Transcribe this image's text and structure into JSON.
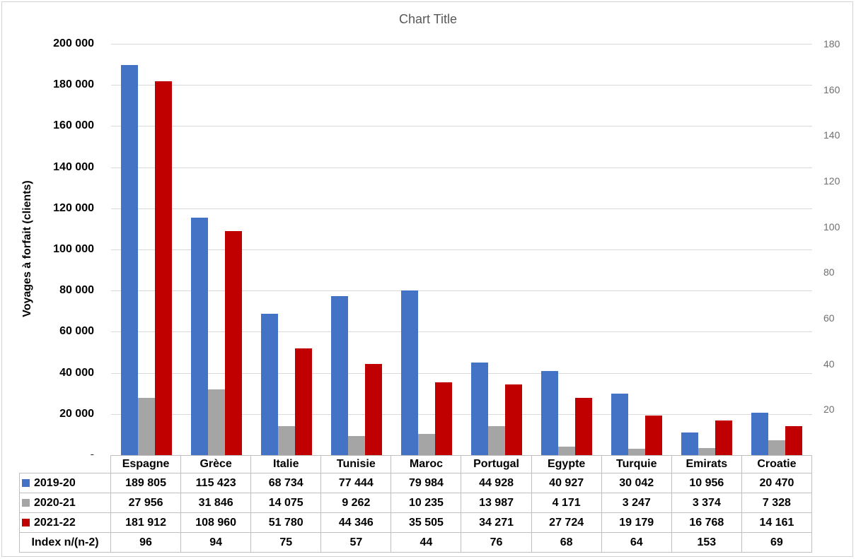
{
  "chart_data": {
    "type": "bar",
    "title": "Chart Title",
    "ylabel": "Voyages à forfait (clients)",
    "categories": [
      "Espagne",
      "Grèce",
      "Italie",
      "Tunisie",
      "Maroc",
      "Portugal",
      "Egypte",
      "Turquie",
      "Emirats",
      "Croatie"
    ],
    "series": [
      {
        "name": "2019-20",
        "color": "#4472C4",
        "values": [
          189805,
          115423,
          68734,
          77444,
          79984,
          44928,
          40927,
          30042,
          10956,
          20470
        ]
      },
      {
        "name": "2020-21",
        "color": "#A5A5A5",
        "values": [
          27956,
          31846,
          14075,
          9262,
          10235,
          13987,
          4171,
          3247,
          3374,
          7328
        ]
      },
      {
        "name": "2021-22",
        "color": "#C00000",
        "values": [
          181912,
          108960,
          51780,
          44346,
          35505,
          34271,
          27724,
          19179,
          16768,
          14161
        ]
      }
    ],
    "table_extra_row": {
      "name": "Index n/(n-2)",
      "values": [
        96,
        94,
        75,
        57,
        44,
        76,
        68,
        64,
        153,
        69
      ]
    },
    "left_axis": {
      "min": 0,
      "max": 200000,
      "ticks": [
        "200 000",
        "180 000",
        "160 000",
        "140 000",
        "120 000",
        "100 000",
        "80 000",
        "60 000",
        "40 000",
        "20 000",
        "-"
      ]
    },
    "right_axis": {
      "min": 0,
      "max": 180,
      "ticks": [
        "180",
        "160",
        "140",
        "120",
        "100",
        "80",
        "60",
        "40",
        "20"
      ]
    },
    "grid": true,
    "legend_position": "data-table"
  }
}
